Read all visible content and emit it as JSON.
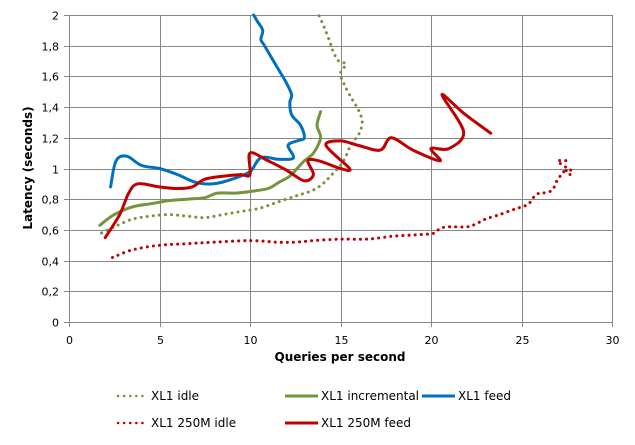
{
  "chart_data": {
    "type": "line",
    "title": "",
    "xlabel": "Queries per second",
    "ylabel": "Latency (seconds)",
    "xlim": [
      0,
      30
    ],
    "ylim": [
      0,
      2
    ],
    "x_ticks": [
      "0",
      "5",
      "10",
      "15",
      "20",
      "25",
      "30"
    ],
    "y_ticks": [
      "0",
      "0,2",
      "0,4",
      "0,6",
      "0,8",
      "1",
      "1,2",
      "1,4",
      "1,6",
      "1,8",
      "2"
    ],
    "grid": true,
    "legend_position": "bottom",
    "series": [
      {
        "name": "XL1 idle",
        "color": "#77933C",
        "style": "dotted",
        "points": [
          [
            1.8,
            0.58
          ],
          [
            2.5,
            0.62
          ],
          [
            3.5,
            0.67
          ],
          [
            4.5,
            0.69
          ],
          [
            5.5,
            0.7
          ],
          [
            6.5,
            0.69
          ],
          [
            7.5,
            0.68
          ],
          [
            8.5,
            0.7
          ],
          [
            9.5,
            0.72
          ],
          [
            10.5,
            0.74
          ],
          [
            11.5,
            0.78
          ],
          [
            12.5,
            0.82
          ],
          [
            13.3,
            0.85
          ],
          [
            13.8,
            0.88
          ],
          [
            14.2,
            0.92
          ],
          [
            14.6,
            0.97
          ],
          [
            15.0,
            1.02
          ],
          [
            15.3,
            1.08
          ],
          [
            15.6,
            1.16
          ],
          [
            16.0,
            1.22
          ],
          [
            16.2,
            1.3
          ],
          [
            16.0,
            1.38
          ],
          [
            15.6,
            1.46
          ],
          [
            15.2,
            1.55
          ],
          [
            15.0,
            1.62
          ],
          [
            15.3,
            1.68
          ],
          [
            14.9,
            1.7
          ],
          [
            14.6,
            1.76
          ],
          [
            14.4,
            1.83
          ],
          [
            14.1,
            1.92
          ],
          [
            13.8,
            2.0
          ]
        ]
      },
      {
        "name": "XL1 incremental",
        "color": "#77933C",
        "style": "solid",
        "points": [
          [
            1.7,
            0.63
          ],
          [
            2.5,
            0.7
          ],
          [
            3.5,
            0.75
          ],
          [
            4.5,
            0.77
          ],
          [
            5.5,
            0.79
          ],
          [
            6.5,
            0.8
          ],
          [
            7.5,
            0.81
          ],
          [
            8.2,
            0.84
          ],
          [
            9.2,
            0.84
          ],
          [
            10.0,
            0.85
          ],
          [
            11.0,
            0.87
          ],
          [
            11.6,
            0.91
          ],
          [
            12.2,
            0.95
          ],
          [
            12.6,
            1.0
          ],
          [
            13.0,
            1.05
          ],
          [
            13.5,
            1.1
          ],
          [
            13.9,
            1.2
          ],
          [
            13.7,
            1.28
          ],
          [
            13.9,
            1.37
          ]
        ]
      },
      {
        "name": "XL1 feed",
        "color": "#0070C0",
        "style": "solid",
        "points": [
          [
            2.3,
            0.88
          ],
          [
            2.6,
            1.05
          ],
          [
            3.2,
            1.08
          ],
          [
            4.0,
            1.02
          ],
          [
            5.0,
            1.0
          ],
          [
            6.0,
            0.96
          ],
          [
            7.0,
            0.91
          ],
          [
            8.0,
            0.9
          ],
          [
            9.0,
            0.93
          ],
          [
            10.0,
            0.98
          ],
          [
            10.6,
            1.07
          ],
          [
            11.6,
            1.06
          ],
          [
            12.4,
            1.07
          ],
          [
            12.1,
            1.15
          ],
          [
            12.6,
            1.18
          ],
          [
            13.0,
            1.2
          ],
          [
            12.8,
            1.28
          ],
          [
            12.3,
            1.35
          ],
          [
            12.2,
            1.43
          ],
          [
            12.3,
            1.48
          ],
          [
            12.0,
            1.56
          ],
          [
            11.6,
            1.64
          ],
          [
            11.2,
            1.72
          ],
          [
            10.8,
            1.8
          ],
          [
            10.6,
            1.84
          ],
          [
            10.7,
            1.9
          ],
          [
            10.4,
            1.96
          ],
          [
            10.2,
            2.0
          ]
        ]
      },
      {
        "name": "XL1 250M idle",
        "color": "#C00000",
        "style": "dotted",
        "points": [
          [
            2.4,
            0.42
          ],
          [
            3.5,
            0.47
          ],
          [
            5.0,
            0.5
          ],
          [
            6.5,
            0.51
          ],
          [
            8.0,
            0.52
          ],
          [
            10.0,
            0.53
          ],
          [
            11.5,
            0.52
          ],
          [
            12.5,
            0.52
          ],
          [
            13.5,
            0.53
          ],
          [
            15.0,
            0.54
          ],
          [
            16.5,
            0.54
          ],
          [
            18.0,
            0.56
          ],
          [
            19.5,
            0.57
          ],
          [
            20.2,
            0.58
          ],
          [
            20.5,
            0.61
          ],
          [
            21.0,
            0.62
          ],
          [
            22.0,
            0.62
          ],
          [
            22.5,
            0.64
          ],
          [
            23.0,
            0.67
          ],
          [
            23.8,
            0.7
          ],
          [
            24.5,
            0.73
          ],
          [
            25.0,
            0.75
          ],
          [
            25.4,
            0.77
          ],
          [
            25.8,
            0.83
          ],
          [
            26.2,
            0.84
          ],
          [
            26.7,
            0.86
          ],
          [
            27.0,
            0.93
          ],
          [
            27.3,
            0.97
          ],
          [
            27.4,
            1.0
          ],
          [
            27.6,
            0.96
          ],
          [
            27.8,
            0.98
          ],
          [
            27.3,
            1.02
          ],
          [
            27.0,
            1.05
          ],
          [
            27.6,
            1.05
          ]
        ]
      },
      {
        "name": "XL1 250M feed",
        "color": "#C00000",
        "style": "solid",
        "points": [
          [
            2.0,
            0.55
          ],
          [
            2.8,
            0.7
          ],
          [
            3.3,
            0.84
          ],
          [
            3.8,
            0.9
          ],
          [
            5.0,
            0.88
          ],
          [
            6.0,
            0.87
          ],
          [
            6.8,
            0.88
          ],
          [
            7.5,
            0.93
          ],
          [
            8.5,
            0.95
          ],
          [
            9.5,
            0.96
          ],
          [
            10.0,
            0.96
          ],
          [
            10.0,
            1.1
          ],
          [
            11.0,
            1.05
          ],
          [
            12.0,
            0.99
          ],
          [
            13.0,
            0.92
          ],
          [
            13.5,
            0.96
          ],
          [
            13.2,
            1.05
          ],
          [
            13.8,
            1.05
          ],
          [
            15.0,
            1.0
          ],
          [
            15.5,
            1.0
          ],
          [
            14.2,
            1.15
          ],
          [
            15.0,
            1.18
          ],
          [
            16.0,
            1.15
          ],
          [
            17.2,
            1.12
          ],
          [
            17.8,
            1.2
          ],
          [
            19.0,
            1.12
          ],
          [
            20.5,
            1.05
          ],
          [
            20.0,
            1.13
          ],
          [
            21.0,
            1.13
          ],
          [
            21.8,
            1.24
          ],
          [
            20.6,
            1.48
          ],
          [
            21.8,
            1.36
          ],
          [
            23.3,
            1.23
          ]
        ]
      }
    ]
  }
}
